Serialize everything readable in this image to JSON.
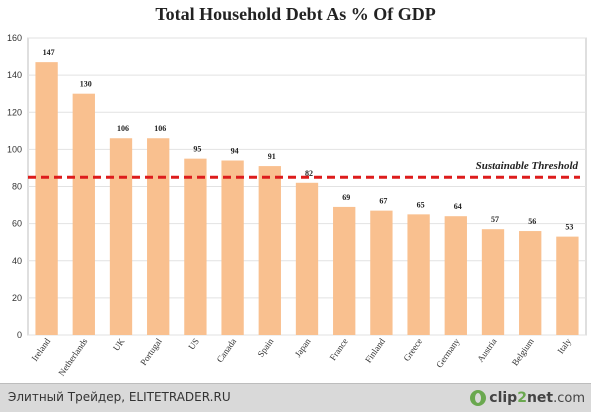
{
  "chart_data": {
    "type": "bar",
    "title": "Total Household Debt As % Of GDP",
    "categories": [
      "Ireland",
      "Netherlands",
      "UK",
      "Portugal",
      "US",
      "Canada",
      "Spain",
      "Japan",
      "France",
      "Finland",
      "Greece",
      "Germany",
      "Austria",
      "Belgium",
      "Italy"
    ],
    "values": [
      147,
      130,
      106,
      106,
      95,
      94,
      91,
      82,
      69,
      67,
      65,
      64,
      57,
      56,
      53
    ],
    "ylim": [
      0,
      160
    ],
    "yticks": [
      0,
      20,
      40,
      60,
      80,
      100,
      120,
      140,
      160
    ],
    "xlabel": "",
    "ylabel": "",
    "grid": true,
    "bar_color": "#f9c08f",
    "threshold": {
      "label": "Sustainable Threshold",
      "value": 85,
      "color": "#dd1c1c"
    }
  },
  "footer": {
    "text": "Элитный Трейдер, ELITETRADER.RU",
    "brand_main": "clip",
    "brand_accent": "2",
    "brand_rest": "net",
    "brand_suffix": ".com"
  }
}
